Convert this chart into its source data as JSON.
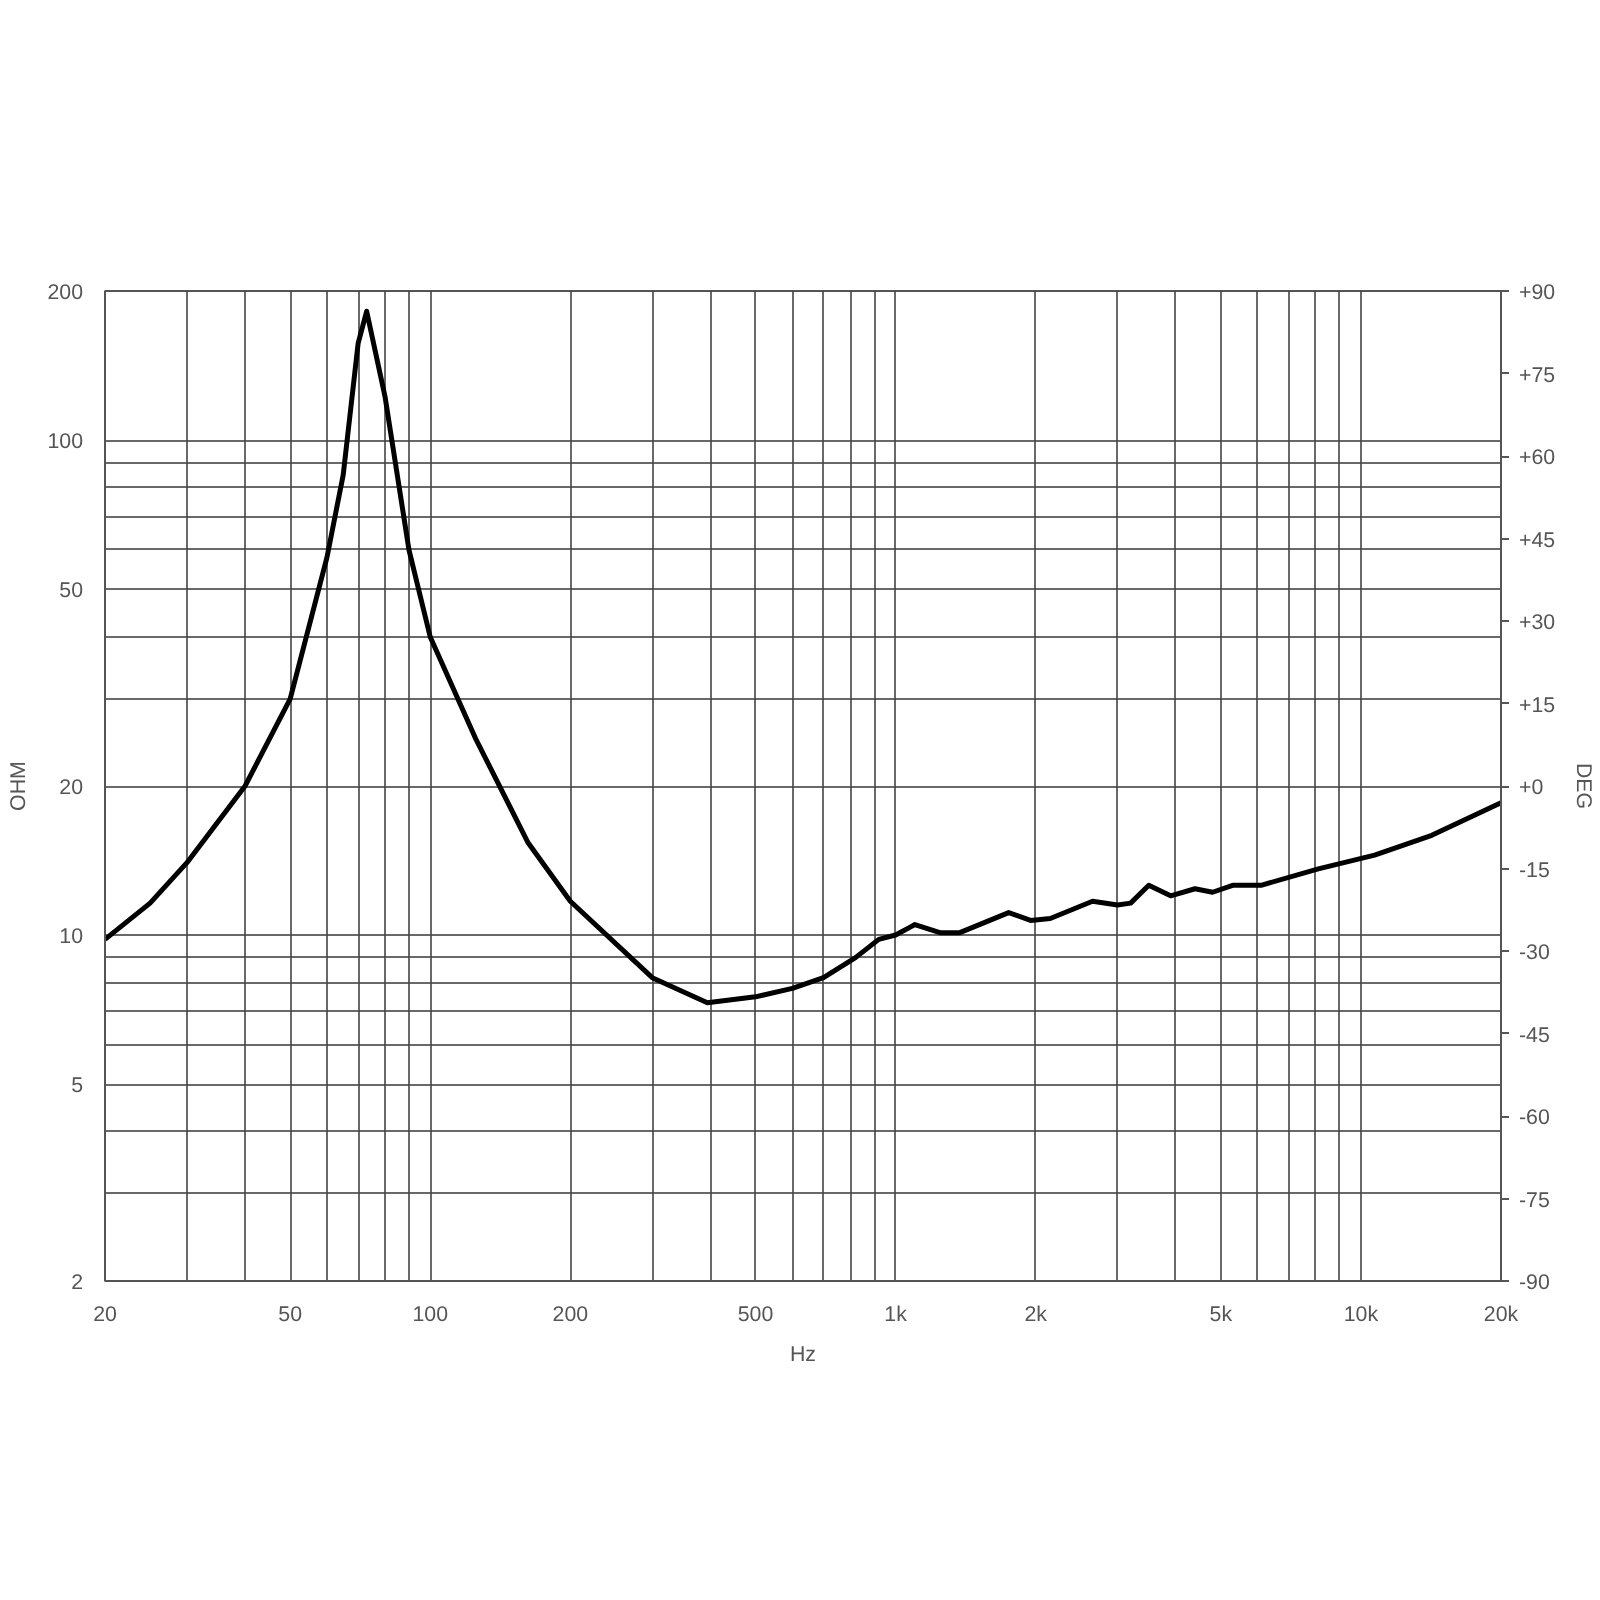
{
  "chart_data": {
    "type": "line",
    "xlabel": "Hz",
    "ylabel": "OHM",
    "y2label": "DEG",
    "log": "xy",
    "grid": true,
    "marker": "none",
    "line_style": "solid",
    "xlim": [
      20,
      20000
    ],
    "ylim": [
      2,
      200
    ],
    "y2lim": [
      -90,
      90
    ],
    "xticks": [
      20,
      {
        "value": 30,
        "label": null
      },
      {
        "value": 40,
        "label": null
      },
      50,
      {
        "value": 60,
        "label": null
      },
      {
        "value": 70,
        "label": null
      },
      {
        "value": 80,
        "label": null
      },
      {
        "value": 90,
        "label": null
      },
      100,
      200,
      {
        "value": 300,
        "label": null
      },
      {
        "value": 400,
        "label": null
      },
      500,
      {
        "value": 600,
        "label": null
      },
      {
        "value": 700,
        "label": null
      },
      {
        "value": 800,
        "label": null
      },
      {
        "value": 900,
        "label": null
      },
      {
        "value": 1000,
        "label": "1k"
      },
      {
        "value": 2000,
        "label": "2k"
      },
      {
        "value": 3000,
        "label": null
      },
      {
        "value": 4000,
        "label": null
      },
      {
        "value": 5000,
        "label": "5k"
      },
      {
        "value": 6000,
        "label": null
      },
      {
        "value": 7000,
        "label": null
      },
      {
        "value": 8000,
        "label": null
      },
      {
        "value": 9000,
        "label": null
      },
      {
        "value": 10000,
        "label": "10k"
      },
      {
        "value": 20000,
        "label": "20k"
      }
    ],
    "yticks": [
      2,
      {
        "value": 3,
        "label": null
      },
      {
        "value": 4,
        "label": null
      },
      5,
      {
        "value": 6,
        "label": null
      },
      {
        "value": 7,
        "label": null
      },
      {
        "value": 8,
        "label": null
      },
      {
        "value": 9,
        "label": null
      },
      10,
      20,
      {
        "value": 30,
        "label": null
      },
      {
        "value": 40,
        "label": null
      },
      50,
      {
        "value": 60,
        "label": null
      },
      {
        "value": 70,
        "label": null
      },
      {
        "value": 80,
        "label": null
      },
      {
        "value": 90,
        "label": null
      },
      100,
      200
    ],
    "y2ticks": [
      {
        "value": -90,
        "label": "-90"
      },
      {
        "value": -75,
        "label": "-75"
      },
      {
        "value": -60,
        "label": "-60"
      },
      {
        "value": -45,
        "label": "-45"
      },
      {
        "value": -30,
        "label": "-30"
      },
      {
        "value": -15,
        "label": "-15"
      },
      {
        "value": 0,
        "label": "+0"
      },
      {
        "value": 15,
        "label": "+15"
      },
      {
        "value": 30,
        "label": "+30"
      },
      {
        "value": 45,
        "label": "+45"
      },
      {
        "value": 60,
        "label": "+60"
      },
      {
        "value": 75,
        "label": "+75"
      },
      {
        "value": 90,
        "label": "+90"
      }
    ],
    "series": [
      {
        "color": "#000000",
        "x": [
          20,
          25,
          30,
          40,
          50,
          60,
          65,
          70,
          73,
          80,
          90,
          100,
          125,
          162,
          200,
          300,
          394,
          500,
          600,
          700,
          820,
          920,
          1000,
          1080,
          1100,
          1250,
          1370,
          1750,
          1950,
          2150,
          2650,
          3000,
          3200,
          3500,
          3900,
          4400,
          4800,
          5300,
          6100,
          8100,
          10700,
          14200,
          20000
        ],
        "values": [
          9.8,
          11.6,
          14,
          20,
          30,
          58,
          85,
          157,
          182,
          122,
          60,
          40,
          25,
          15.4,
          11.7,
          8.2,
          7.3,
          7.5,
          7.8,
          8.2,
          9,
          9.8,
          10,
          10.4,
          10.5,
          10.1,
          10.1,
          11.1,
          10.7,
          10.8,
          11.7,
          11.5,
          11.6,
          12.6,
          12,
          12.4,
          12.2,
          12.6,
          12.6,
          13.6,
          14.5,
          15.9,
          18.5
        ]
      }
    ]
  }
}
